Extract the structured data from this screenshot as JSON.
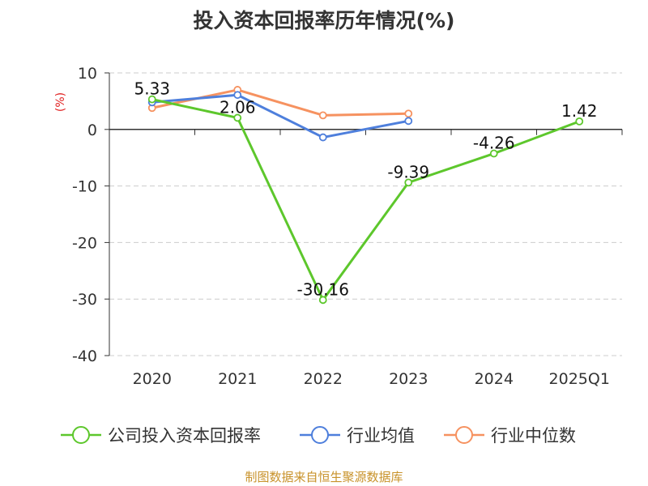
{
  "title": "投入资本回报率历年情况(%)",
  "source_note": "制图数据来自恒生聚源数据库",
  "chart_data": {
    "type": "line",
    "title": "投入资本回报率历年情况(%)",
    "ylabel": "(%)",
    "ylim": [
      -40,
      10
    ],
    "yticks": [
      10,
      0,
      -10,
      -20,
      -30,
      -40
    ],
    "categories": [
      "2020",
      "2021",
      "2022",
      "2023",
      "2024",
      "2025Q1"
    ],
    "grid": true,
    "legend_position": "bottom",
    "series": [
      {
        "name": "公司投入资本回报率",
        "color": "#5dc72c",
        "values": [
          5.33,
          2.06,
          -30.16,
          -9.39,
          -4.26,
          1.42
        ],
        "labels": [
          "5.33",
          "2.06",
          "-30.16",
          "-9.39",
          "-4.26",
          "1.42"
        ]
      },
      {
        "name": "行业均值",
        "color": "#4e7fdc",
        "values": [
          4.8,
          6.1,
          -1.4,
          1.5,
          null,
          null
        ]
      },
      {
        "name": "行业中位数",
        "color": "#f69260",
        "values": [
          3.8,
          7.0,
          2.5,
          2.8,
          null,
          null
        ]
      }
    ]
  }
}
